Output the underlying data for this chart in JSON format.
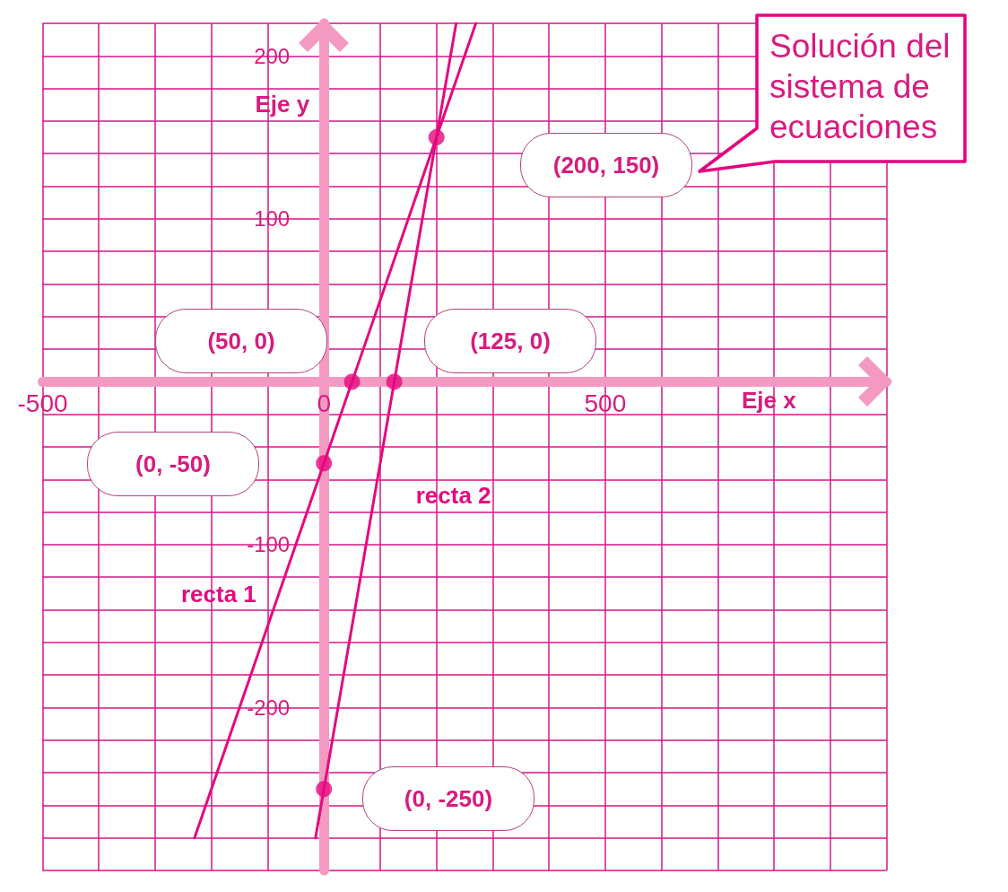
{
  "chart_data": {
    "type": "line",
    "xlabel": "Eje x",
    "ylabel": "Eje y",
    "annotations": [
      "Solución del sistema de ecuaciones",
      "(200, 150)",
      "(50, 0)",
      "(125, 0)",
      "(0, -50)",
      "(0, -250)"
    ],
    "series": [
      {
        "name": "recta 1",
        "color": "#e5097f",
        "x": [
          -230,
          0,
          50,
          200,
          270
        ],
        "values": [
          -280,
          -50,
          0,
          150,
          220
        ]
      },
      {
        "name": "recta 2",
        "color": "#e5097f",
        "x": [
          -15,
          0,
          125,
          200,
          235
        ],
        "values": [
          -280,
          -250,
          0,
          150,
          220
        ]
      },
      {
        "type": "scatter",
        "color": "#e5097f",
        "marker": "circle",
        "x": [
          50,
          125,
          0,
          0,
          200
        ],
        "values": [
          0,
          0,
          -50,
          -250,
          150
        ]
      }
    ],
    "xlim": [
      -500,
      1000
    ],
    "ylim": [
      -300,
      220
    ],
    "xticks": [
      -500,
      {
        "value": -400,
        "label": null
      },
      {
        "value": -300,
        "label": null
      },
      {
        "value": -200,
        "label": null
      },
      {
        "value": -100,
        "label": null
      },
      0,
      {
        "value": 100,
        "label": null
      },
      {
        "value": 200,
        "label": null
      },
      {
        "value": 300,
        "label": null
      },
      {
        "value": 400,
        "label": null
      },
      500,
      {
        "value": 600,
        "label": null
      },
      {
        "value": 700,
        "label": null
      },
      {
        "value": 800,
        "label": null
      },
      {
        "value": 900,
        "label": null
      },
      {
        "value": 1000,
        "label": null
      }
    ],
    "yticks": [
      {
        "value": -300,
        "label": null
      },
      {
        "value": -280,
        "label": null
      },
      {
        "value": -260,
        "label": null
      },
      {
        "value": -240,
        "label": null
      },
      {
        "value": -220,
        "label": null
      },
      -200,
      {
        "value": -180,
        "label": null
      },
      {
        "value": -160,
        "label": null
      },
      {
        "value": -140,
        "label": null
      },
      {
        "value": -120,
        "label": null
      },
      -100,
      {
        "value": -80,
        "label": null
      },
      {
        "value": -60,
        "label": null
      },
      {
        "value": -40,
        "label": null
      },
      {
        "value": -20,
        "label": null
      },
      {
        "value": 0,
        "label": null
      },
      {
        "value": 20,
        "label": null
      },
      {
        "value": 40,
        "label": null
      },
      {
        "value": 60,
        "label": null
      },
      {
        "value": 80,
        "label": null
      },
      100,
      {
        "value": 120,
        "label": null
      },
      {
        "value": 140,
        "label": null
      },
      {
        "value": 160,
        "label": null
      },
      {
        "value": 180,
        "label": null
      },
      200,
      {
        "value": 220,
        "label": null
      }
    ],
    "grid": true
  }
}
